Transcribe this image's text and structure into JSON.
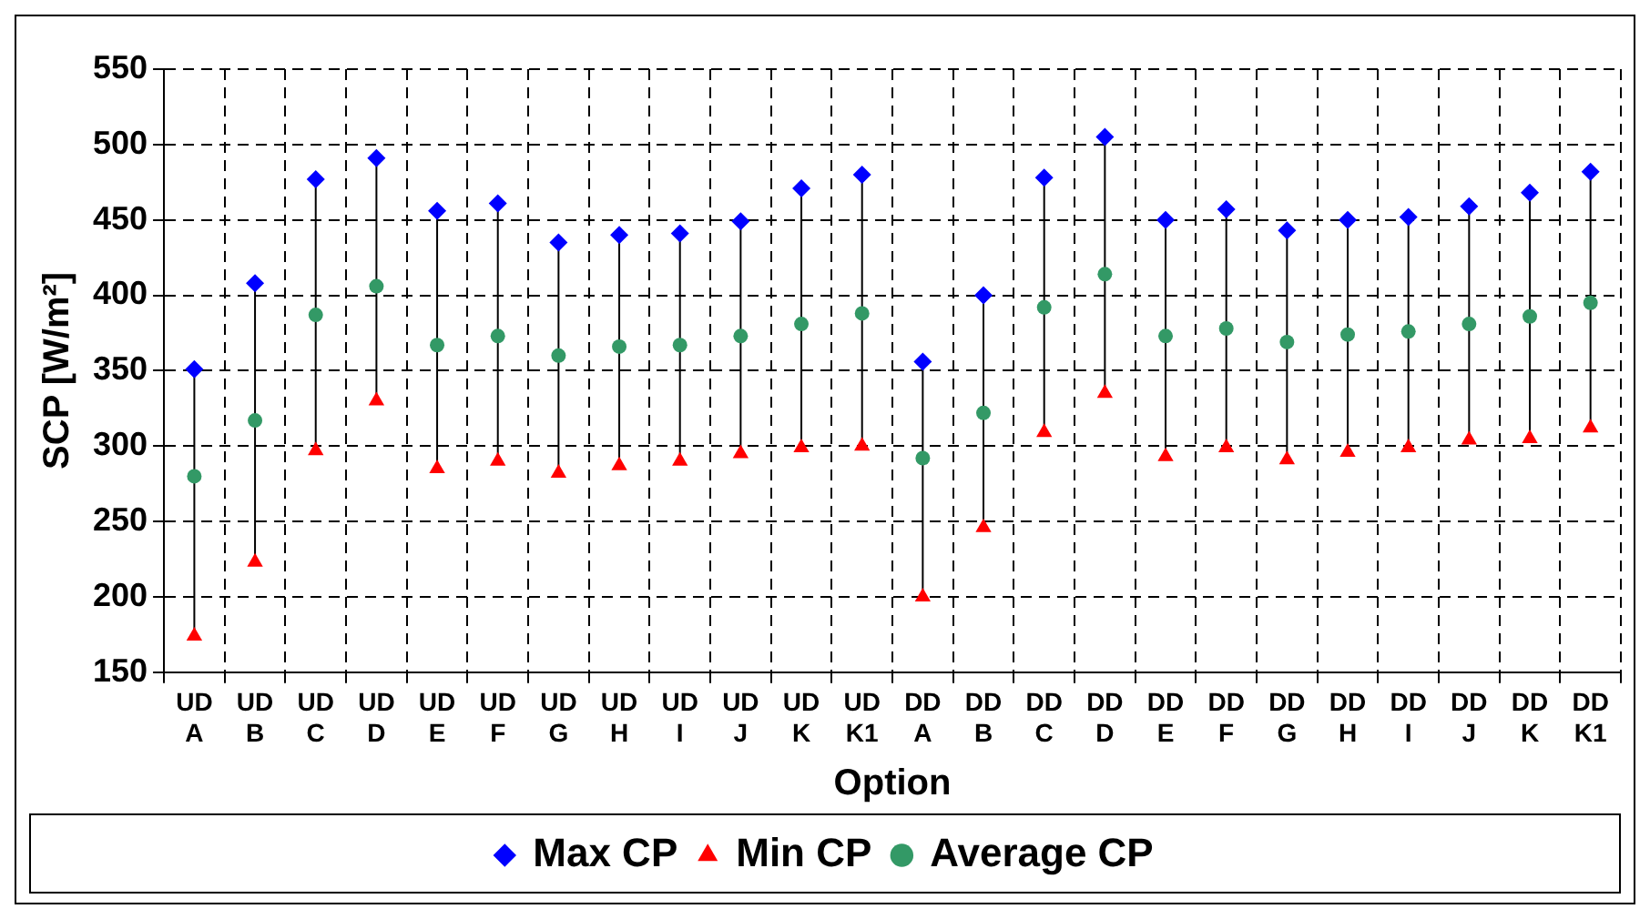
{
  "chart_data": {
    "type": "scatter",
    "xlabel": "Option",
    "ylabel": "SCP [W/m²]",
    "categories": [
      "UD A",
      "UD B",
      "UD C",
      "UD D",
      "UD E",
      "UD F",
      "UD G",
      "UD H",
      "UD I",
      "UD J",
      "UD K",
      "UD K1",
      "DD A",
      "DD B",
      "DD C",
      "DD D",
      "DD E",
      "DD F",
      "DD G",
      "DD H",
      "DD I",
      "DD J",
      "DD K",
      "DD K1"
    ],
    "series": [
      {
        "name": "Max CP",
        "color": "#0000ff",
        "marker": "diamond",
        "values": [
          351,
          408,
          477,
          491,
          456,
          461,
          435,
          440,
          441,
          449,
          471,
          480,
          356,
          400,
          478,
          505,
          450,
          457,
          443,
          450,
          452,
          459,
          468,
          482
        ]
      },
      {
        "name": "Min CP",
        "color": "#ff0000",
        "marker": "triangle",
        "values": [
          174,
          223,
          297,
          330,
          285,
          290,
          282,
          287,
          290,
          295,
          299,
          300,
          200,
          246,
          309,
          335,
          293,
          299,
          291,
          296,
          299,
          304,
          305,
          312
        ]
      },
      {
        "name": "Average CP",
        "color": "#339966",
        "marker": "circle",
        "values": [
          280,
          317,
          387,
          406,
          367,
          373,
          360,
          366,
          367,
          373,
          381,
          388,
          292,
          322,
          392,
          414,
          373,
          378,
          369,
          374,
          376,
          381,
          386,
          395
        ]
      }
    ],
    "ylim": [
      150,
      550
    ],
    "yticks": [
      150,
      200,
      250,
      300,
      350,
      400,
      450,
      500,
      550
    ],
    "grid": true,
    "legend": "bottom"
  }
}
